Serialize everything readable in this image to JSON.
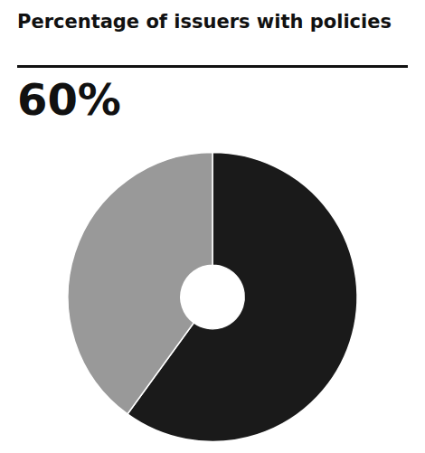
{
  "chart_data": {
    "type": "pie",
    "title": "Percentage of issuers with policies",
    "values": [
      60,
      40
    ],
    "colors": [
      "#1a1a1a",
      "#999999"
    ],
    "annotations": [
      "60%"
    ]
  }
}
